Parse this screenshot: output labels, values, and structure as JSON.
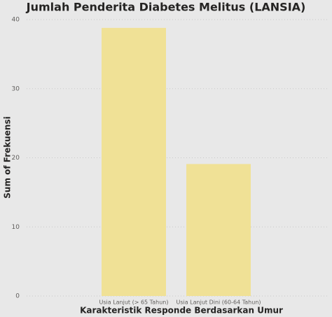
{
  "chart_data": {
    "type": "bar",
    "title": "Jumlah Penderita Diabetes Melitus (LANSIA)",
    "x_label": "Karakteristik Responde Berdasarkan Umur",
    "y_label": "Sum of Frekuensi",
    "categories": [
      "Usia Lanjut (> 65 Tahun)",
      "Usia Lanjut Dini (60-64 Tahun)"
    ],
    "values": [
      38.8,
      19.1
    ],
    "color": "#f0e196",
    "ylim": [
      0,
      40
    ],
    "yticks": [
      0,
      10,
      20,
      30,
      40
    ],
    "grid": true
  }
}
